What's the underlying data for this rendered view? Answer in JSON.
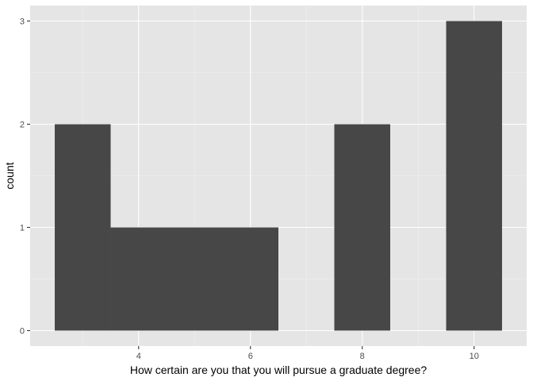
{
  "chart_data": {
    "type": "bar",
    "subtype": "histogram",
    "title": "",
    "xlabel": "How certain are you that you will pursue a graduate degree?",
    "ylabel": "count",
    "bins": [
      {
        "x_start": 2.5,
        "x_end": 3.5,
        "count": 2
      },
      {
        "x_start": 3.5,
        "x_end": 4.5,
        "count": 1
      },
      {
        "x_start": 4.5,
        "x_end": 5.5,
        "count": 1
      },
      {
        "x_start": 5.5,
        "x_end": 6.5,
        "count": 1
      },
      {
        "x_start": 6.5,
        "x_end": 7.5,
        "count": 0
      },
      {
        "x_start": 7.5,
        "x_end": 8.5,
        "count": 2
      },
      {
        "x_start": 8.5,
        "x_end": 9.5,
        "count": 0
      },
      {
        "x_start": 9.5,
        "x_end": 10.5,
        "count": 3
      }
    ],
    "xlim": [
      2.06,
      10.94
    ],
    "ylim": [
      -0.15,
      3.15
    ],
    "x_ticks": [
      4,
      6,
      8,
      10
    ],
    "x_minor_ticks": [
      3,
      5,
      7,
      9
    ],
    "y_ticks": [
      0,
      1,
      2,
      3
    ],
    "y_minor_ticks": [
      0.5,
      1.5,
      2.5
    ],
    "grid": true,
    "legend": "none",
    "colors": {
      "bar": "#474747",
      "panel": "#e5e5e5",
      "grid_major": "#ffffff",
      "grid_minor": "#f2f2f2"
    }
  }
}
